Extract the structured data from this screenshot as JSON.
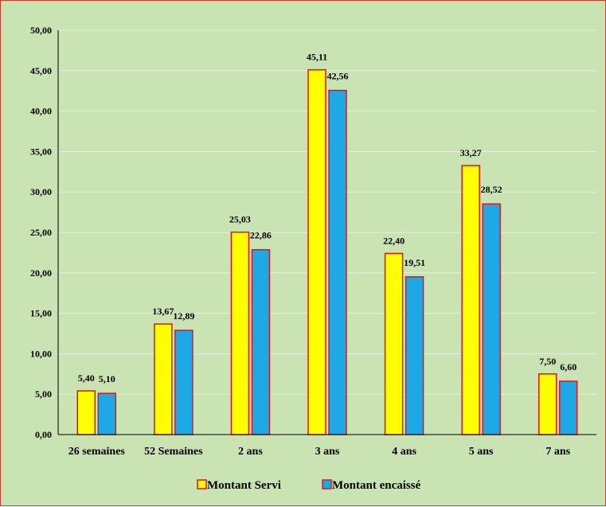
{
  "chart_data": {
    "type": "bar",
    "categories": [
      "26 semaines",
      "52 Semaines",
      "2 ans",
      "3 ans",
      "4 ans",
      "5 ans",
      "7 ans"
    ],
    "series": [
      {
        "name": "Montant Servi",
        "values": [
          5.4,
          13.67,
          25.03,
          45.11,
          22.4,
          33.27,
          7.5
        ],
        "labels": [
          "5,40",
          "13,67",
          "25,03",
          "45,11",
          "22,40",
          "33,27",
          "7,50"
        ],
        "color": "#ffff00",
        "border": "#e0161c"
      },
      {
        "name": "Montant encaissé",
        "values": [
          5.1,
          12.89,
          22.86,
          42.56,
          19.51,
          28.52,
          6.6
        ],
        "labels": [
          "5,10",
          "12,89",
          "22,86",
          "42,56",
          "19,51",
          "28,52",
          "6,60"
        ],
        "color": "#1ea8e6",
        "border": "#e0161c"
      }
    ],
    "yticks": [
      "0,00",
      "5,00",
      "10,00",
      "15,00",
      "20,00",
      "25,00",
      "30,00",
      "35,00",
      "40,00",
      "45,00",
      "50,00"
    ],
    "ylim": [
      0,
      50
    ],
    "grid": true,
    "legend": "bottom",
    "background": "#c9e3b3",
    "gridcolor": "#e6efdb",
    "title": "",
    "xlabel": "",
    "ylabel": ""
  }
}
